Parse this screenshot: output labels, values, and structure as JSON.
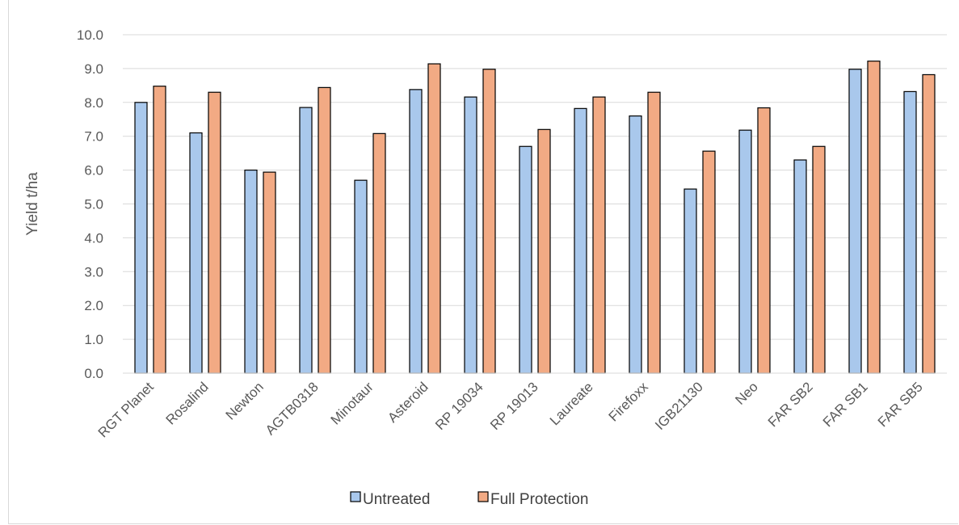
{
  "chart_data": {
    "type": "bar",
    "title": "",
    "xlabel": "",
    "ylabel": "Yield t/ha",
    "ylim": [
      0,
      10
    ],
    "ytick_step": 1,
    "ytick_labels": [
      "0.0",
      "1.0",
      "2.0",
      "3.0",
      "4.0",
      "5.0",
      "6.0",
      "7.0",
      "8.0",
      "9.0",
      "10.0"
    ],
    "grid": true,
    "legend_position": "bottom",
    "categories": [
      "RGT Planet",
      "Rosalind",
      "Newton",
      "AGTB0318",
      "Minotaur",
      "Asteroid",
      "RP 19034",
      "RP 19013",
      "Laureate",
      "Firefoxx",
      "IGB21130",
      "Neo",
      "FAR SB2",
      "FAR SB1",
      "FAR SB5"
    ],
    "series": [
      {
        "name": "Untreated",
        "color": "#a9c8ec",
        "values": [
          8.0,
          7.1,
          6.0,
          7.85,
          5.7,
          8.38,
          8.16,
          6.7,
          7.82,
          7.6,
          5.44,
          7.18,
          6.3,
          8.98,
          8.32
        ]
      },
      {
        "name": "Full Protection",
        "color": "#f2aa84",
        "values": [
          8.48,
          8.3,
          5.94,
          8.44,
          7.08,
          9.14,
          8.98,
          7.2,
          8.16,
          8.3,
          6.56,
          7.84,
          6.7,
          9.22,
          8.82
        ]
      }
    ]
  }
}
